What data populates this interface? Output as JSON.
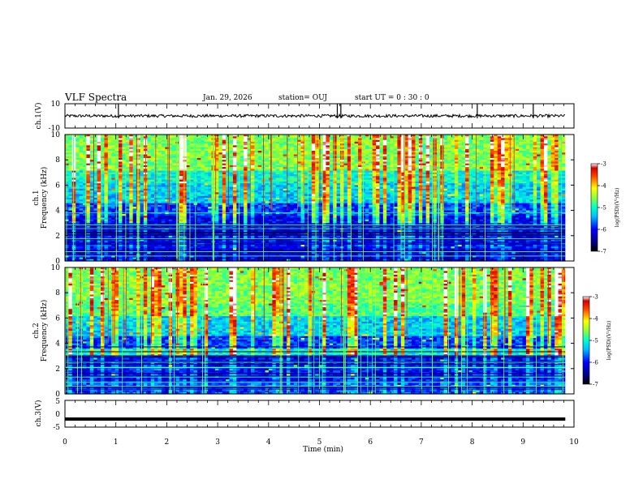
{
  "header": {
    "title": "VLF Spectra",
    "date": "Jan. 29, 2026",
    "station": "station= OUJ",
    "start": "start  UT =   0 : 30 : 0"
  },
  "chart_data": [
    {
      "id": "ch1_waveform",
      "type": "line",
      "ylabel": "ch.1(V)",
      "ylim": [
        -10,
        10
      ],
      "y_ticks": [
        "10",
        "-10"
      ],
      "baseline": 0,
      "noise_amplitude": 1.2,
      "spikes_min": [
        1.05,
        5.35,
        5.42,
        8.1,
        9.2
      ]
    },
    {
      "id": "ch1_spectrogram",
      "type": "heatmap",
      "ylabel": "ch.1\nFrequency (kHz)",
      "ylim": [
        0,
        10
      ],
      "y_ticks": [
        "0",
        "2",
        "4",
        "6",
        "8",
        "10"
      ],
      "colorbar": {
        "label": "log(PSD)(V²/Hz)",
        "range": [
          -7,
          -3
        ],
        "ticks": [
          "-3",
          "-4",
          "-5",
          "-6",
          "-7"
        ]
      }
    },
    {
      "id": "ch2_spectrogram",
      "type": "heatmap",
      "ylabel": "ch.2\nFrequency (kHz)",
      "ylim": [
        0,
        10
      ],
      "y_ticks": [
        "0",
        "2",
        "4",
        "6",
        "8",
        "10"
      ],
      "colorbar": {
        "label": "log(PSD)(V²/Hz)",
        "range": [
          -7,
          -3
        ],
        "ticks": [
          "-3",
          "-4",
          "-5",
          "-6",
          "-7"
        ]
      }
    },
    {
      "id": "ch3_waveform",
      "type": "line",
      "ylabel": "ch.3(V)",
      "ylim": [
        -5,
        5
      ],
      "y_ticks": [
        "5",
        "0",
        "-5"
      ],
      "baseline": -2
    }
  ],
  "x_axis": {
    "label": "Time  (min)",
    "xlim": [
      0,
      10
    ],
    "ticks": [
      "0",
      "1",
      "2",
      "3",
      "4",
      "5",
      "6",
      "7",
      "8",
      "9",
      "10"
    ],
    "data_end": 9.83
  },
  "cb_labels": {
    "ch1": {
      "label": "log(PSD)(V²/Hz)",
      "ticks": [
        "-3",
        "-4",
        "-5",
        "-6",
        "-7"
      ]
    },
    "ch2": {
      "label": "log(PSD)(V²/Hz)",
      "ticks": [
        "-3",
        "-4",
        "-5",
        "-6",
        "-7"
      ]
    }
  },
  "colors": {
    "frame": "#000000",
    "jet_stops": [
      "#00007f",
      "#0000ff",
      "#0080ff",
      "#00ffff",
      "#80ff80",
      "#ffff00",
      "#ff8000",
      "#ff0000",
      "#7f0000"
    ]
  }
}
